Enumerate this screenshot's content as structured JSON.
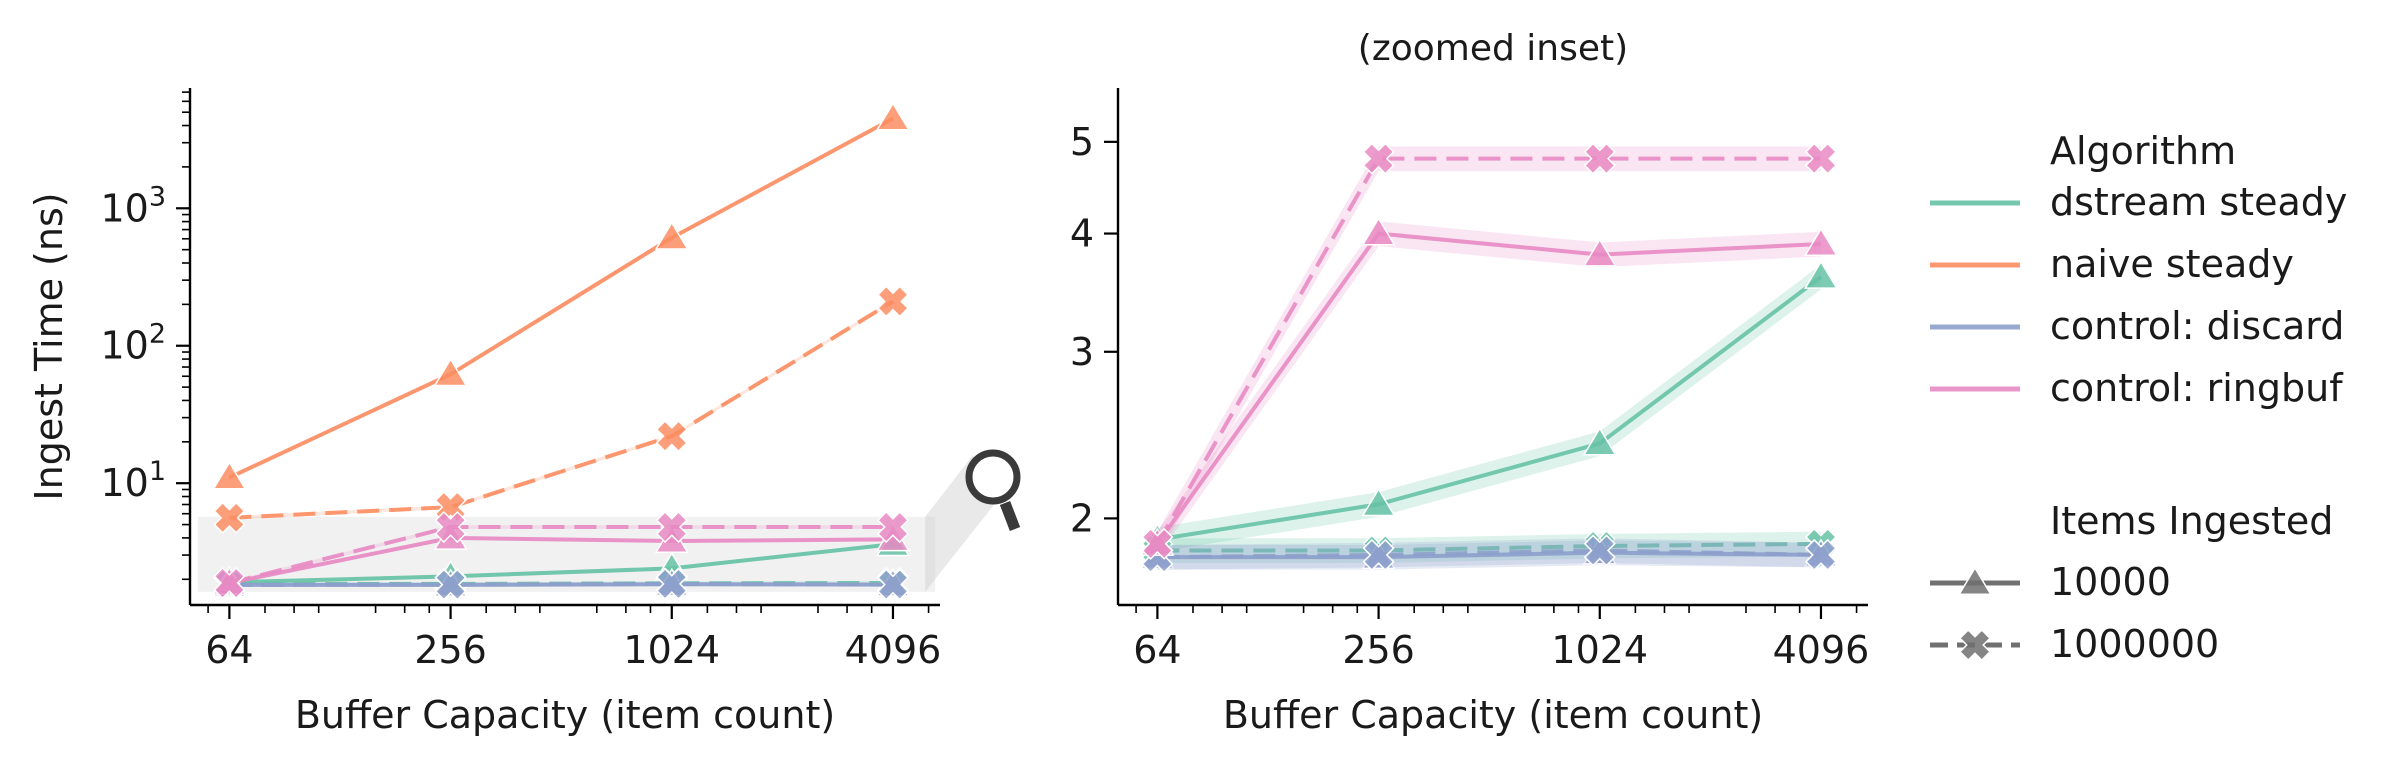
{
  "colors": {
    "dstream steady": "#66c2a5",
    "naive steady": "#fc8d62",
    "control: discard": "#8da0cb",
    "control: ringbuf": "#e78ac3",
    "legend_style": "#707070",
    "zoom_icon": "#3a3a3a"
  },
  "chart_data": [
    {
      "type": "line",
      "title": "",
      "xlabel": "Buffer Capacity (item count)",
      "ylabel": "Ingest Time (ns)",
      "x_scale": "log2",
      "y_scale": "log10",
      "xlim": [
        50,
        5500
      ],
      "ylim": [
        1.3,
        7500
      ],
      "x_ticks": [
        64,
        256,
        1024,
        4096
      ],
      "x_tick_labels": [
        "64",
        "256",
        "1024",
        "4096"
      ],
      "y_ticks": [
        10,
        100,
        1000
      ],
      "y_tick_labels": [
        "10¹",
        "10²",
        "10³"
      ],
      "grid": false,
      "x": [
        64,
        256,
        1024,
        4096
      ],
      "series": [
        {
          "name": "dstream steady",
          "items": "10000",
          "marker": "triangle",
          "values": [
            1.9,
            2.1,
            2.4,
            3.6
          ]
        },
        {
          "name": "dstream steady",
          "items": "1000000",
          "marker": "x",
          "values": [
            1.85,
            1.85,
            1.87,
            1.88
          ]
        },
        {
          "name": "naive steady",
          "items": "10000",
          "marker": "triangle",
          "values": [
            11,
            62,
            610,
            4500
          ]
        },
        {
          "name": "naive steady",
          "items": "1000000",
          "marker": "x",
          "values": [
            5.6,
            6.7,
            22,
            210
          ]
        },
        {
          "name": "control: discard",
          "items": "10000",
          "marker": "triangle",
          "values": [
            1.82,
            1.82,
            1.84,
            1.83
          ]
        },
        {
          "name": "control: discard",
          "items": "1000000",
          "marker": "x",
          "values": [
            1.82,
            1.83,
            1.85,
            1.83
          ]
        },
        {
          "name": "control: ringbuf",
          "items": "10000",
          "marker": "triangle",
          "values": [
            1.88,
            4.0,
            3.8,
            3.9
          ]
        },
        {
          "name": "control: ringbuf",
          "items": "1000000",
          "marker": "x",
          "values": [
            1.88,
            4.8,
            4.8,
            4.8
          ]
        }
      ]
    },
    {
      "type": "line",
      "title": "(zoomed inset)",
      "xlabel": "Buffer Capacity (item count)",
      "ylabel": "",
      "x_scale": "log2",
      "y_scale": "log10",
      "xlim": [
        50,
        5500
      ],
      "ylim": [
        1.62,
        5.7
      ],
      "x_ticks": [
        64,
        256,
        1024,
        4096
      ],
      "x_tick_labels": [
        "64",
        "256",
        "1024",
        "4096"
      ],
      "y_ticks": [
        2,
        3,
        4,
        5
      ],
      "y_tick_labels": [
        "2",
        "3",
        "4",
        "5"
      ],
      "grid": false,
      "x": [
        64,
        256,
        1024,
        4096
      ],
      "series": [
        {
          "name": "dstream steady",
          "items": "10000",
          "marker": "triangle",
          "values": [
            1.9,
            2.07,
            2.4,
            3.6
          ]
        },
        {
          "name": "dstream steady",
          "items": "1000000",
          "marker": "x",
          "values": [
            1.85,
            1.85,
            1.87,
            1.88
          ]
        },
        {
          "name": "control: discard",
          "items": "10000",
          "marker": "triangle",
          "values": [
            1.82,
            1.82,
            1.84,
            1.83
          ]
        },
        {
          "name": "control: discard",
          "items": "1000000",
          "marker": "x",
          "values": [
            1.82,
            1.83,
            1.85,
            1.83
          ]
        },
        {
          "name": "control: ringbuf",
          "items": "10000",
          "marker": "triangle",
          "values": [
            1.88,
            4.0,
            3.8,
            3.9
          ]
        },
        {
          "name": "control: ringbuf",
          "items": "1000000",
          "marker": "x",
          "values": [
            1.88,
            4.8,
            4.8,
            4.8
          ]
        }
      ]
    }
  ],
  "legend": {
    "placement": "right",
    "algorithm_title": "Algorithm",
    "algorithms": [
      "dstream steady",
      "naive steady",
      "control: discard",
      "control: ringbuf"
    ],
    "items_title": "Items Ingested",
    "items": [
      {
        "label": "10000",
        "marker": "triangle",
        "dash": "solid"
      },
      {
        "label": "1000000",
        "marker": "x",
        "dash": "dashed"
      }
    ]
  }
}
